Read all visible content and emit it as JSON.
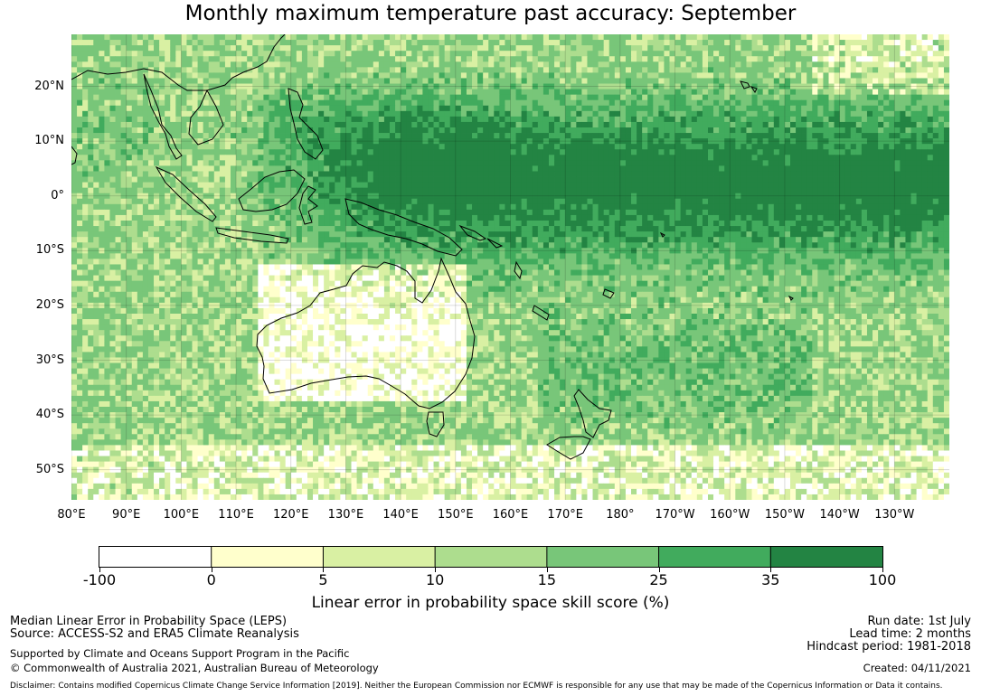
{
  "title": "Monthly maximum temperature past accuracy: September",
  "map": {
    "lat_labels": [
      {
        "label": "20°N",
        "lat": 20
      },
      {
        "label": "10°N",
        "lat": 10
      },
      {
        "label": "0°",
        "lat": 0
      },
      {
        "label": "10°S",
        "lat": -10
      },
      {
        "label": "20°S",
        "lat": -20
      },
      {
        "label": "30°S",
        "lat": -30
      },
      {
        "label": "40°S",
        "lat": -40
      },
      {
        "label": "50°S",
        "lat": -50
      }
    ],
    "lon_labels": [
      {
        "label": "80°E",
        "lon": 80
      },
      {
        "label": "90°E",
        "lon": 90
      },
      {
        "label": "100°E",
        "lon": 100
      },
      {
        "label": "110°E",
        "lon": 110
      },
      {
        "label": "120°E",
        "lon": 120
      },
      {
        "label": "130°E",
        "lon": 130
      },
      {
        "label": "140°E",
        "lon": 140
      },
      {
        "label": "150°E",
        "lon": 150
      },
      {
        "label": "160°E",
        "lon": 160
      },
      {
        "label": "170°E",
        "lon": 170
      },
      {
        "label": "180°",
        "lon": 180
      },
      {
        "label": "170°W",
        "lon": 190
      },
      {
        "label": "160°W",
        "lon": 200
      },
      {
        "label": "150°W",
        "lon": 210
      },
      {
        "label": "140°W",
        "lon": 220
      },
      {
        "label": "130°W",
        "lon": 230
      }
    ],
    "extent": {
      "lon_min": 80,
      "lon_max": 240,
      "lat_min": -55.5,
      "lat_max": 29.5
    },
    "palette": [
      "#ffffff",
      "#ffffcc",
      "#d9f0a3",
      "#addd8e",
      "#78c679",
      "#41ab5d",
      "#238443"
    ]
  },
  "colorbar": {
    "ticks": [
      "-100",
      "0",
      "5",
      "10",
      "15",
      "25",
      "35",
      "100"
    ],
    "colors": [
      "#ffffff",
      "#ffffcc",
      "#d9f0a3",
      "#addd8e",
      "#78c679",
      "#41ab5d",
      "#238443"
    ],
    "label": "Linear error in probability space skill score (%)"
  },
  "footer": {
    "left1": "Median Linear Error in Probability Space (LEPS)",
    "left2": "Source: ACCESS-S2 and ERA5 Climate Reanalysis",
    "left3": "Supported by Climate and Oceans Support Program in the Pacific",
    "left4": "© Commonwealth of Australia 2021, Australian Bureau of Meteorology",
    "right1": "Run date: 1st July",
    "right2": "Lead time: 2 months",
    "right3": "Hindcast period: 1981-2018",
    "right4": "Created: 04/11/2021",
    "disclaimer": "Disclaimer: Contains modified Copernicus Climate Change Service Information [2019]. Neither the European Commission nor ECMWF is responsible for any use that may be made of the Copernicus Information or Data it contains."
  }
}
